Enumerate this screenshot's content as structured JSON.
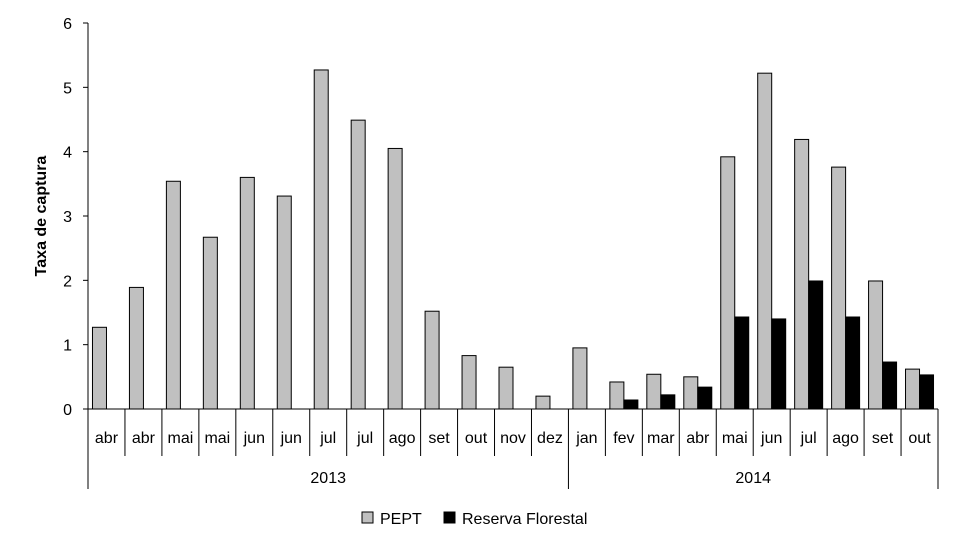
{
  "chart_data": {
    "type": "bar",
    "title": "",
    "ylabel": "Taxa de captura",
    "xlabel": "",
    "ylim": [
      0,
      6
    ],
    "yticks": [
      0,
      1,
      2,
      3,
      4,
      5,
      6
    ],
    "grid": false,
    "legend_position": "bottom",
    "categories": [
      "abr",
      "abr",
      "mai",
      "mai",
      "jun",
      "jun",
      "jul",
      "jul",
      "ago",
      "set",
      "out",
      "nov",
      "dez",
      "jan",
      "fev",
      "mar",
      "abr",
      "mai",
      "jun",
      "jul",
      "ago",
      "set",
      "out"
    ],
    "groups": [
      {
        "label": "2013",
        "start": 0,
        "count": 13
      },
      {
        "label": "2014",
        "start": 13,
        "count": 10
      }
    ],
    "series": [
      {
        "name": "PEPT",
        "color": "#c0c0c0",
        "values": [
          1.27,
          1.89,
          3.54,
          2.67,
          3.6,
          3.31,
          5.27,
          4.49,
          4.05,
          1.52,
          0.83,
          0.65,
          0.2,
          0.95,
          0.42,
          0.54,
          0.5,
          3.92,
          5.22,
          4.19,
          3.76,
          1.99,
          0.62
        ]
      },
      {
        "name": "Reserva Florestal",
        "color": "#000000",
        "values": [
          null,
          null,
          null,
          null,
          null,
          null,
          null,
          null,
          null,
          null,
          null,
          null,
          null,
          null,
          0.14,
          0.22,
          0.34,
          1.43,
          1.4,
          1.99,
          1.43,
          0.73,
          0.53
        ]
      }
    ]
  }
}
